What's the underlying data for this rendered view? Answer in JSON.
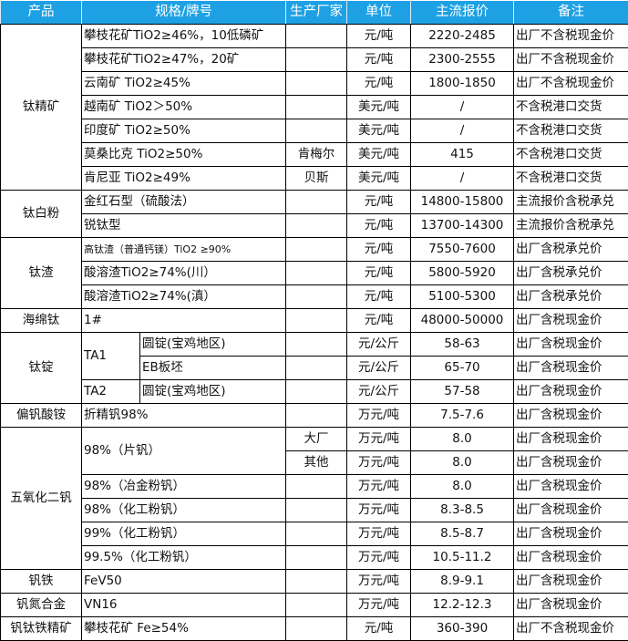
{
  "header": [
    "产品",
    "规格/牌号",
    "生产厂家",
    "单位",
    "主流报价",
    "备注"
  ],
  "colors": {
    "header_bg": "#1ea1e4",
    "header_text": "#ffffff",
    "grid": "#000000"
  },
  "rows": [
    {
      "product": "钛精矿",
      "spec": "攀枝花矿TiO2≥46%，10低磷矿",
      "maker": "",
      "unit": "元/吨",
      "price": "2220-2485",
      "note": "出厂不含税现金价"
    },
    {
      "product": "钛精矿",
      "spec": "攀枝花矿TiO2≥47%，20矿",
      "maker": "",
      "unit": "元/吨",
      "price": "2300-2555",
      "note": "出厂不含税现金价"
    },
    {
      "product": "钛精矿",
      "spec": "云南矿 TiO2≥45%",
      "maker": "",
      "unit": "元/吨",
      "price": "1800-1850",
      "note": "出厂不含税现金价"
    },
    {
      "product": "钛精矿",
      "spec": "越南矿 TiO2＞50%",
      "maker": "",
      "unit": "美元/吨",
      "price": "/",
      "note": "不含税港口交货"
    },
    {
      "product": "钛精矿",
      "spec": "印度矿 TiO2≥50%",
      "maker": "",
      "unit": "美元/吨",
      "price": "/",
      "note": "不含税港口交货"
    },
    {
      "product": "钛精矿",
      "spec": "莫桑比克 TiO2≥50%",
      "maker": "肯梅尔",
      "unit": "美元/吨",
      "price": "415",
      "note": "不含税港口交货"
    },
    {
      "product": "钛精矿",
      "spec": "肯尼亚 TiO2≥49%",
      "maker": "贝斯",
      "unit": "美元/吨",
      "price": "/",
      "note": "不含税港口交货"
    },
    {
      "product": "钛白粉",
      "spec": "金红石型（硫酸法）",
      "maker": "",
      "unit": "元/吨",
      "price": "14800-15800",
      "note": "主流报价含税承兑"
    },
    {
      "product": "钛白粉",
      "spec": "锐钛型",
      "maker": "",
      "unit": "元/吨",
      "price": "13700-14300",
      "note": "主流报价含税承兑"
    },
    {
      "product": "钛渣",
      "spec": "高钛渣（普通钙镁）TiO2 ≥90%",
      "maker": "",
      "unit": "元/吨",
      "price": "7550-7600",
      "note": "出厂含税承兑价",
      "small": true
    },
    {
      "product": "钛渣",
      "spec": "酸溶渣TiO2≥74%(川）",
      "maker": "",
      "unit": "元/吨",
      "price": "5800-5920",
      "note": "出厂含税承兑价"
    },
    {
      "product": "钛渣",
      "spec": "酸溶渣TiO2≥74%(滇）",
      "maker": "",
      "unit": "元/吨",
      "price": "5100-5300",
      "note": "出厂含税承兑价"
    },
    {
      "product": "海绵钛",
      "spec": "1#",
      "maker": "",
      "unit": "元/吨",
      "price": "48000-50000",
      "note": "出厂含税现金价"
    },
    {
      "product": "钛锭",
      "spec": "TA1",
      "spec2": "圆锭(宝鸡地区)",
      "maker": "",
      "unit": "元/公斤",
      "price": "58-63",
      "note": "出厂含税现金价"
    },
    {
      "product": "钛锭",
      "spec": "TA1",
      "spec2": "EB板坯",
      "maker": "",
      "unit": "元/公斤",
      "price": "65-70",
      "note": "出厂含税现金价"
    },
    {
      "product": "钛锭",
      "spec": "TA2",
      "spec2": "圆锭(宝鸡地区)",
      "maker": "",
      "unit": "元/公斤",
      "price": "57-58",
      "note": "出厂含税现金价"
    },
    {
      "product": "偏钒酸铵",
      "spec": "折精钒98%",
      "maker": "",
      "unit": "万元/吨",
      "price": "7.5-7.6",
      "note": "出厂含税现金价"
    },
    {
      "product": "五氧化二钒",
      "spec": "98%（片钒）",
      "maker": "大厂",
      "unit": "万元/吨",
      "price": "8.0",
      "note": "出厂含税现金价"
    },
    {
      "product": "五氧化二钒",
      "spec": "98%（片钒）",
      "maker": "其他",
      "unit": "万元/吨",
      "price": "8.0",
      "note": "出厂含税现金价"
    },
    {
      "product": "五氧化二钒",
      "spec": "98%（冶金粉钒）",
      "maker": "",
      "unit": "万元/吨",
      "price": "8.0",
      "note": "出厂含税现金价"
    },
    {
      "product": "五氧化二钒",
      "spec": "98%（化工粉钒）",
      "maker": "",
      "unit": "万元/吨",
      "price": "8.3-8.5",
      "note": "出厂含税现金价"
    },
    {
      "product": "五氧化二钒",
      "spec": "99%（化工粉钒）",
      "maker": "",
      "unit": "万元/吨",
      "price": "8.5-8.7",
      "note": "出厂含税现金价"
    },
    {
      "product": "五氧化二钒",
      "spec": "99.5%（化工粉钒）",
      "maker": "",
      "unit": "万元/吨",
      "price": "10.5-11.2",
      "note": "出厂含税现金价"
    },
    {
      "product": "钒铁",
      "spec": "FeV50",
      "maker": "",
      "unit": "万元/吨",
      "price": "8.9-9.1",
      "note": "出厂含税现金价"
    },
    {
      "product": "钒氮合金",
      "spec": "VN16",
      "maker": "",
      "unit": "万元/吨",
      "price": "12.2-12.3",
      "note": "出厂含税现金价"
    },
    {
      "product": "钒钛铁精矿",
      "spec": "攀枝花矿 Fe≥54%",
      "maker": "",
      "unit": "元/吨",
      "price": "360-390",
      "note": "出厂不含税现金价"
    }
  ]
}
